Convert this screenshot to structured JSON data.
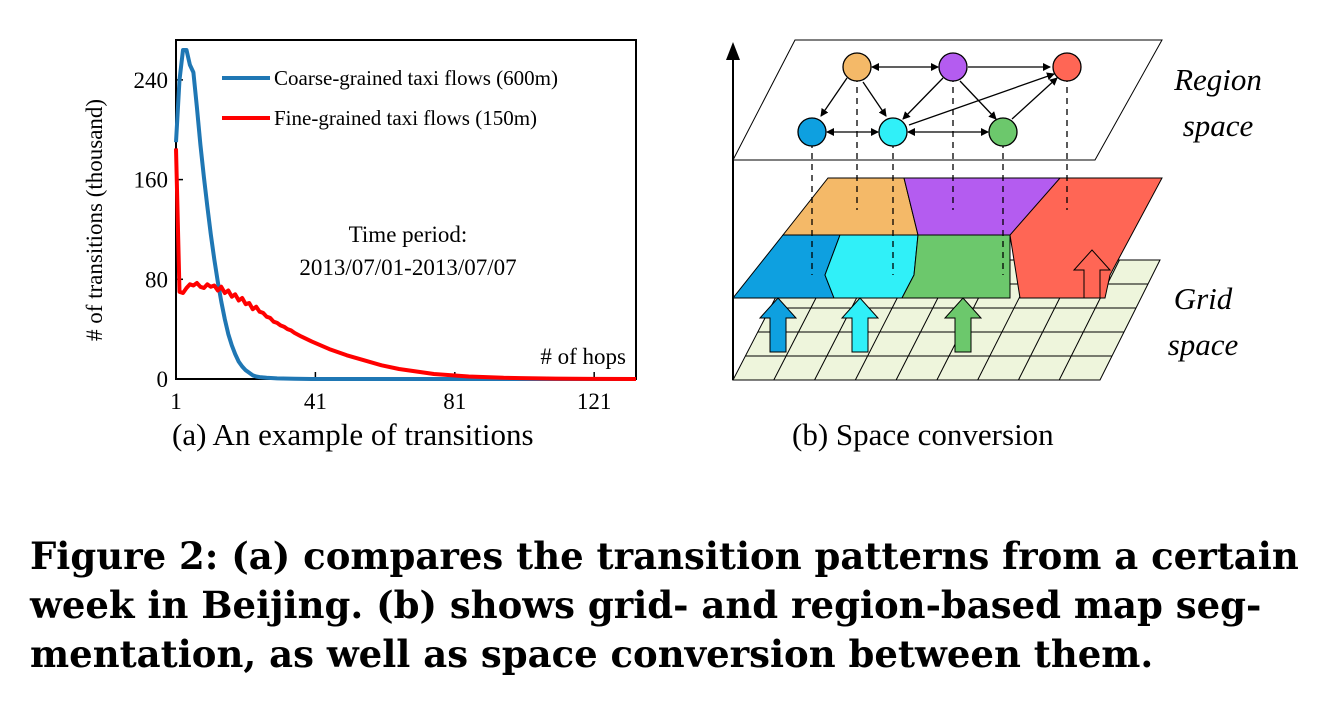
{
  "chart_data": {
    "type": "line",
    "ylabel": "# of transitions (thousand)",
    "xlabel": "# of hops",
    "x_ticks": [
      "1",
      "41",
      "81",
      "121"
    ],
    "y_ticks": [
      "0",
      "80",
      "160",
      "240"
    ],
    "xlim": [
      1,
      133
    ],
    "ylim": [
      0,
      272
    ],
    "annotation": [
      "Time period:",
      "2013/07/01-2013/07/07"
    ],
    "legend_position": "top-right",
    "series": [
      {
        "name": "Coarse-grained taxi flows (600m)",
        "color": "#1f77b4",
        "x": [
          1,
          2,
          3,
          4,
          5,
          6,
          7,
          8,
          9,
          10,
          11,
          12,
          13,
          14,
          15,
          16,
          17,
          18,
          19,
          20,
          21,
          22,
          23,
          24,
          25,
          27,
          30,
          35,
          40,
          60,
          80,
          100,
          120,
          133
        ],
        "y": [
          190,
          240,
          264,
          264,
          252,
          246,
          218,
          188,
          162,
          138,
          116,
          96,
          78,
          62,
          48,
          36,
          27,
          20,
          14,
          10,
          7,
          5,
          3,
          2,
          1.5,
          1,
          0.5,
          0.2,
          0,
          0,
          0,
          0,
          0,
          0
        ]
      },
      {
        "name": "Fine-grained taxi flows (150m)",
        "color": "#ff0000",
        "x": [
          1,
          2,
          3,
          4,
          5,
          6,
          7,
          8,
          9,
          10,
          11,
          12,
          13,
          14,
          15,
          16,
          17,
          18,
          19,
          20,
          21,
          22,
          23,
          24,
          25,
          26,
          27,
          28,
          29,
          30,
          31,
          32,
          33,
          34,
          35,
          37,
          40,
          45,
          50,
          55,
          60,
          65,
          70,
          75,
          80,
          85,
          90,
          95,
          100,
          110,
          120,
          133
        ],
        "y": [
          185,
          70,
          69,
          73,
          76,
          75,
          77,
          74,
          73,
          76,
          74,
          75,
          71,
          74,
          69,
          71,
          66,
          68,
          63,
          65,
          60,
          61,
          56,
          58,
          54,
          53,
          50,
          49,
          46,
          45,
          43,
          42,
          40,
          39,
          37,
          34,
          30,
          24,
          19,
          15,
          11,
          8,
          6,
          4,
          3,
          2,
          1.5,
          1,
          0.7,
          0.3,
          0.1,
          0
        ]
      }
    ]
  },
  "diagram": {
    "region_label": [
      "Region",
      "space"
    ],
    "grid_label": [
      "Grid",
      "space"
    ],
    "colors": {
      "orange": "#f4b968",
      "purple": "#b45cf0",
      "red": "#ff6655",
      "blue": "#0ea0e0",
      "cyan": "#30f0f8",
      "green": "#6cc86c",
      "grid_fill": "#eef5dc"
    }
  },
  "captions": {
    "a": "(a) An example of transitions",
    "b": "(b) Space conversion"
  },
  "figure_caption": [
    "Figure 2: (a) compares the transition patterns from a certain",
    "week in Beijing. (b) shows grid- and region-based map seg-",
    "mentation, as well as space conversion between them."
  ]
}
